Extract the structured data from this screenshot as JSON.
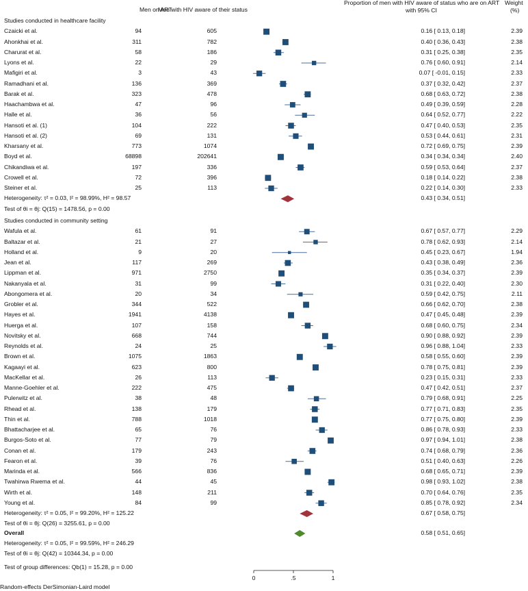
{
  "headers": {
    "men_on_art": "Men on ART",
    "men_aware": "Men with HIV aware of their status",
    "proportion_line1": "Proportion of men with HIV aware of status who are on ART",
    "proportion_line2": "with 95% CI",
    "weight_line1": "Weight",
    "weight_line2": "(%)"
  },
  "chart_data": {
    "type": "forest",
    "x_axis": {
      "range": [
        0,
        1
      ],
      "ticks": [
        0,
        0.5,
        1
      ],
      "tick_labels": [
        "0",
        ".5",
        "1"
      ]
    },
    "groups": [
      {
        "title": "Studies conducted in healthcare facility",
        "studies": [
          {
            "name": "Czaicki et al.",
            "art": "94",
            "aware": "605",
            "est": 0.16,
            "lo": 0.13,
            "hi": 0.18,
            "ci": "0.16 [  0.13,  0.18]",
            "weight": "2.39"
          },
          {
            "name": "Ahonkhai et al.",
            "art": "311",
            "aware": "782",
            "est": 0.4,
            "lo": 0.36,
            "hi": 0.43,
            "ci": "0.40 [  0.36,  0.43]",
            "weight": "2.38"
          },
          {
            "name": "Charurat et al.",
            "art": "58",
            "aware": "186",
            "est": 0.31,
            "lo": 0.25,
            "hi": 0.38,
            "ci": "0.31 [  0.25,  0.38]",
            "weight": "2.35"
          },
          {
            "name": "Lyons et al.",
            "art": "22",
            "aware": "29",
            "est": 0.76,
            "lo": 0.6,
            "hi": 0.91,
            "ci": "0.76 [  0.60,  0.91]",
            "weight": "2.14"
          },
          {
            "name": "Mafigiri et al.",
            "art": "3",
            "aware": "43",
            "est": 0.07,
            "lo": -0.01,
            "hi": 0.15,
            "ci": "0.07 [ -0.01,  0.15]",
            "weight": "2.33"
          },
          {
            "name": "Ramadhani et al.",
            "art": "136",
            "aware": "369",
            "est": 0.37,
            "lo": 0.32,
            "hi": 0.42,
            "ci": "0.37 [  0.32,  0.42]",
            "weight": "2.37"
          },
          {
            "name": "Barak et al.",
            "art": "323",
            "aware": "478",
            "est": 0.68,
            "lo": 0.63,
            "hi": 0.72,
            "ci": "0.68 [  0.63,  0.72]",
            "weight": "2.38"
          },
          {
            "name": "Haachambwa et al.",
            "art": "47",
            "aware": "96",
            "est": 0.49,
            "lo": 0.39,
            "hi": 0.59,
            "ci": "0.49 [  0.39,  0.59]",
            "weight": "2.28"
          },
          {
            "name": "Halle et al.",
            "art": "36",
            "aware": "56",
            "est": 0.64,
            "lo": 0.52,
            "hi": 0.77,
            "ci": "0.64 [  0.52,  0.77]",
            "weight": "2.22"
          },
          {
            "name": "Hansoti et al. (1)",
            "art": "104",
            "aware": "222",
            "est": 0.47,
            "lo": 0.4,
            "hi": 0.53,
            "ci": "0.47 [  0.40,  0.53]",
            "weight": "2.35"
          },
          {
            "name": "Hansoti et al. (2)",
            "art": "69",
            "aware": "131",
            "est": 0.53,
            "lo": 0.44,
            "hi": 0.61,
            "ci": "0.53 [  0.44,  0.61]",
            "weight": "2.31"
          },
          {
            "name": "Kharsany et al.",
            "art": "773",
            "aware": "1074",
            "est": 0.72,
            "lo": 0.69,
            "hi": 0.75,
            "ci": "0.72 [  0.69,  0.75]",
            "weight": "2.39"
          },
          {
            "name": "Boyd et al.",
            "art": "68898",
            "aware": "202641",
            "est": 0.34,
            "lo": 0.34,
            "hi": 0.34,
            "ci": "0.34 [  0.34,  0.34]",
            "weight": "2.40"
          },
          {
            "name": "Chikandiwa et al.",
            "art": "197",
            "aware": "336",
            "est": 0.59,
            "lo": 0.53,
            "hi": 0.64,
            "ci": "0.59 [  0.53,  0.64]",
            "weight": "2.37"
          },
          {
            "name": "Crowell et al.",
            "art": "72",
            "aware": "396",
            "est": 0.18,
            "lo": 0.14,
            "hi": 0.22,
            "ci": "0.18 [  0.14,  0.22]",
            "weight": "2.38"
          },
          {
            "name": "Steiner et al.",
            "art": "25",
            "aware": "113",
            "est": 0.22,
            "lo": 0.14,
            "hi": 0.3,
            "ci": "0.22 [  0.14,  0.30]",
            "weight": "2.33"
          }
        ],
        "pooled": {
          "label": "Heterogeneity: τ² = 0.03, I² = 98.99%, H² = 98.57",
          "est": 0.43,
          "lo": 0.34,
          "hi": 0.51,
          "ci": "0.43 [  0.34,  0.51]"
        },
        "test": "Test of θi = θj: Q(15) = 1478.56, p = 0.00"
      },
      {
        "title": "Studies conducted in community setting",
        "studies": [
          {
            "name": "Wafula et al.",
            "art": "61",
            "aware": "91",
            "est": 0.67,
            "lo": 0.57,
            "hi": 0.77,
            "ci": "0.67 [  0.57,  0.77]",
            "weight": "2.29"
          },
          {
            "name": "Baltazar et al.",
            "art": "21",
            "aware": "27",
            "est": 0.78,
            "lo": 0.62,
            "hi": 0.93,
            "ci": "0.78 [  0.62,  0.93]",
            "weight": "2.14"
          },
          {
            "name": "Holland et al.",
            "art": "9",
            "aware": "20",
            "est": 0.45,
            "lo": 0.23,
            "hi": 0.67,
            "ci": "0.45 [  0.23,  0.67]",
            "weight": "1.94"
          },
          {
            "name": "Jean et al.",
            "art": "117",
            "aware": "269",
            "est": 0.43,
            "lo": 0.38,
            "hi": 0.49,
            "ci": "0.43 [  0.38,  0.49]",
            "weight": "2.36"
          },
          {
            "name": "Lippman et al.",
            "art": "971",
            "aware": "2750",
            "est": 0.35,
            "lo": 0.34,
            "hi": 0.37,
            "ci": "0.35 [  0.34,  0.37]",
            "weight": "2.39"
          },
          {
            "name": "Nakanyala et al.",
            "art": "31",
            "aware": "99",
            "est": 0.31,
            "lo": 0.22,
            "hi": 0.4,
            "ci": "0.31 [  0.22,  0.40]",
            "weight": "2.30"
          },
          {
            "name": "Abongomera et al.",
            "art": "20",
            "aware": "34",
            "est": 0.59,
            "lo": 0.42,
            "hi": 0.75,
            "ci": "0.59 [  0.42,  0.75]",
            "weight": "2.11"
          },
          {
            "name": "Grobler et al.",
            "art": "344",
            "aware": "522",
            "est": 0.66,
            "lo": 0.62,
            "hi": 0.7,
            "ci": "0.66 [  0.62,  0.70]",
            "weight": "2.38"
          },
          {
            "name": "Hayes et al.",
            "art": "1941",
            "aware": "4138",
            "est": 0.47,
            "lo": 0.45,
            "hi": 0.48,
            "ci": "0.47 [  0.45,  0.48]",
            "weight": "2.39"
          },
          {
            "name": "Huerga et al.",
            "art": "107",
            "aware": "158",
            "est": 0.68,
            "lo": 0.6,
            "hi": 0.75,
            "ci": "0.68 [  0.60,  0.75]",
            "weight": "2.34"
          },
          {
            "name": "Novitsky et al.",
            "art": "668",
            "aware": "744",
            "est": 0.9,
            "lo": 0.88,
            "hi": 0.92,
            "ci": "0.90 [  0.88,  0.92]",
            "weight": "2.39"
          },
          {
            "name": "Reynolds et al.",
            "art": "24",
            "aware": "25",
            "est": 0.96,
            "lo": 0.88,
            "hi": 1.04,
            "ci": "0.96 [  0.88,  1.04]",
            "weight": "2.33"
          },
          {
            "name": "Brown et al.",
            "art": "1075",
            "aware": "1863",
            "est": 0.58,
            "lo": 0.55,
            "hi": 0.6,
            "ci": "0.58 [  0.55,  0.60]",
            "weight": "2.39"
          },
          {
            "name": "Kagaayi et al.",
            "art": "623",
            "aware": "800",
            "est": 0.78,
            "lo": 0.75,
            "hi": 0.81,
            "ci": "0.78 [  0.75,  0.81]",
            "weight": "2.39"
          },
          {
            "name": "MacKellar et al.",
            "art": "26",
            "aware": "113",
            "est": 0.23,
            "lo": 0.15,
            "hi": 0.31,
            "ci": "0.23 [  0.15,  0.31]",
            "weight": "2.33"
          },
          {
            "name": "Manne-Goehler et al.",
            "art": "222",
            "aware": "475",
            "est": 0.47,
            "lo": 0.42,
            "hi": 0.51,
            "ci": "0.47 [  0.42,  0.51]",
            "weight": "2.37"
          },
          {
            "name": "Pulerwitz et al.",
            "art": "38",
            "aware": "48",
            "est": 0.79,
            "lo": 0.68,
            "hi": 0.91,
            "ci": "0.79 [  0.68,  0.91]",
            "weight": "2.25"
          },
          {
            "name": "Rhead et al.",
            "art": "138",
            "aware": "179",
            "est": 0.77,
            "lo": 0.71,
            "hi": 0.83,
            "ci": "0.77 [  0.71,  0.83]",
            "weight": "2.35"
          },
          {
            "name": "Thin et al.",
            "art": "788",
            "aware": "1018",
            "est": 0.77,
            "lo": 0.75,
            "hi": 0.8,
            "ci": "0.77 [  0.75,  0.80]",
            "weight": "2.39"
          },
          {
            "name": "Bhattacharjee et al.",
            "art": "65",
            "aware": "76",
            "est": 0.86,
            "lo": 0.78,
            "hi": 0.93,
            "ci": "0.86 [  0.78,  0.93]",
            "weight": "2.33"
          },
          {
            "name": "Burgos-Soto et al.",
            "art": "77",
            "aware": "79",
            "est": 0.97,
            "lo": 0.94,
            "hi": 1.01,
            "ci": "0.97 [  0.94,  1.01]",
            "weight": "2.38"
          },
          {
            "name": "Conan et al.",
            "art": "179",
            "aware": "243",
            "est": 0.74,
            "lo": 0.68,
            "hi": 0.79,
            "ci": "0.74 [  0.68,  0.79]",
            "weight": "2.36"
          },
          {
            "name": "Fearon et al.",
            "art": "39",
            "aware": "76",
            "est": 0.51,
            "lo": 0.4,
            "hi": 0.63,
            "ci": "0.51 [  0.40,  0.63]",
            "weight": "2.26"
          },
          {
            "name": "Marinda et al.",
            "art": "566",
            "aware": "836",
            "est": 0.68,
            "lo": 0.65,
            "hi": 0.71,
            "ci": "0.68 [  0.65,  0.71]",
            "weight": "2.39"
          },
          {
            "name": "Twahirwa Rwema et al.",
            "art": "44",
            "aware": "45",
            "est": 0.98,
            "lo": 0.93,
            "hi": 1.02,
            "ci": "0.98 [  0.93,  1.02]",
            "weight": "2.38"
          },
          {
            "name": "Wirth et al.",
            "art": "148",
            "aware": "211",
            "est": 0.7,
            "lo": 0.64,
            "hi": 0.76,
            "ci": "0.70 [  0.64,  0.76]",
            "weight": "2.35"
          },
          {
            "name": "Young et al.",
            "art": "84",
            "aware": "99",
            "est": 0.85,
            "lo": 0.78,
            "hi": 0.92,
            "ci": "0.85 [  0.78,  0.92]",
            "weight": "2.34"
          }
        ],
        "pooled": {
          "label": "Heterogeneity: τ² = 0.05, I² = 99.20%, H² = 125.22",
          "est": 0.67,
          "lo": 0.58,
          "hi": 0.75,
          "ci": "0.67 [  0.58,  0.75]"
        },
        "test": "Test of θi = θj: Q(26) = 3255.61, p = 0.00"
      }
    ],
    "overall": {
      "label": "Overall",
      "heterogeneity": "Heterogeneity: τ² = 0.05, I² = 99.59%, H² = 246.29",
      "test": "Test of θi = θj: Q(42) = 10344.34, p = 0.00",
      "est": 0.58,
      "lo": 0.51,
      "hi": 0.65,
      "ci": "0.58 [  0.51,  0.65]"
    },
    "group_difference": "Test of group differences: Qb(1) = 15.28, p = 0.00",
    "footnote": "Random-effects DerSimonian-Laird model",
    "colors": {
      "study": "#1f4e79",
      "subgroup": "#a3333a",
      "overall": "#4f8a2e",
      "ci_line": "#4a6d9c",
      "axis": "#222222"
    }
  }
}
